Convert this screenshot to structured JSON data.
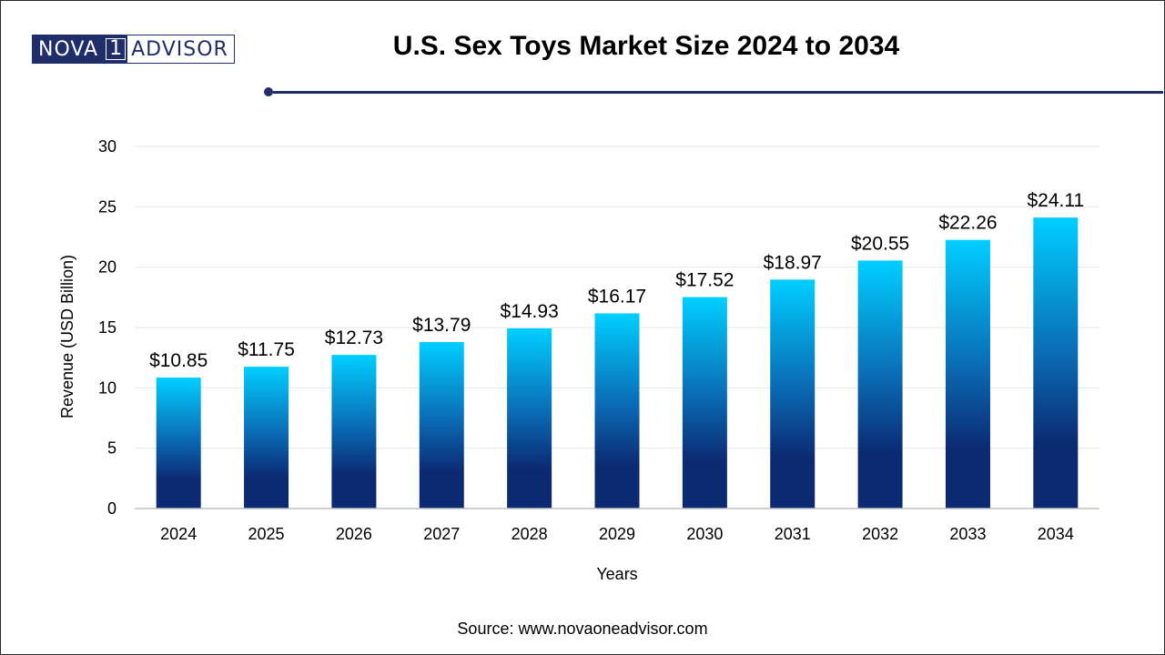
{
  "header": {
    "logo_left": "NOVA",
    "logo_mid": "1",
    "logo_right": "ADVISOR",
    "title": "U.S. Sex Toys Market Size 2024 to 2034"
  },
  "footer": {
    "source": "Source: www.novaoneadvisor.com"
  },
  "chart_data": {
    "type": "bar",
    "title": "U.S. Sex Toys Market Size 2024 to 2034",
    "xlabel": "Years",
    "ylabel": "Revenue (USD Billion)",
    "categories": [
      "2024",
      "2025",
      "2026",
      "2027",
      "2028",
      "2029",
      "2030",
      "2031",
      "2032",
      "2033",
      "2034"
    ],
    "values": [
      10.85,
      11.75,
      12.73,
      13.79,
      14.93,
      16.17,
      17.52,
      18.97,
      20.55,
      22.26,
      24.11
    ],
    "data_labels": [
      "$10.85",
      "$11.75",
      "$12.73",
      "$13.79",
      "$14.93",
      "$16.17",
      "$17.52",
      "$18.97",
      "$20.55",
      "$22.26",
      "$24.11"
    ],
    "ylim": [
      0,
      30
    ],
    "yticks": [
      0,
      5,
      10,
      15,
      20,
      25,
      30
    ],
    "grid": true,
    "legend": "none",
    "colors": {
      "bar_top": "#00cfff",
      "bar_mid": "#0a6fb8",
      "bar_bottom": "#0b2a72",
      "grid": "#e6e6e6",
      "axis": "#bfbfbf"
    }
  }
}
